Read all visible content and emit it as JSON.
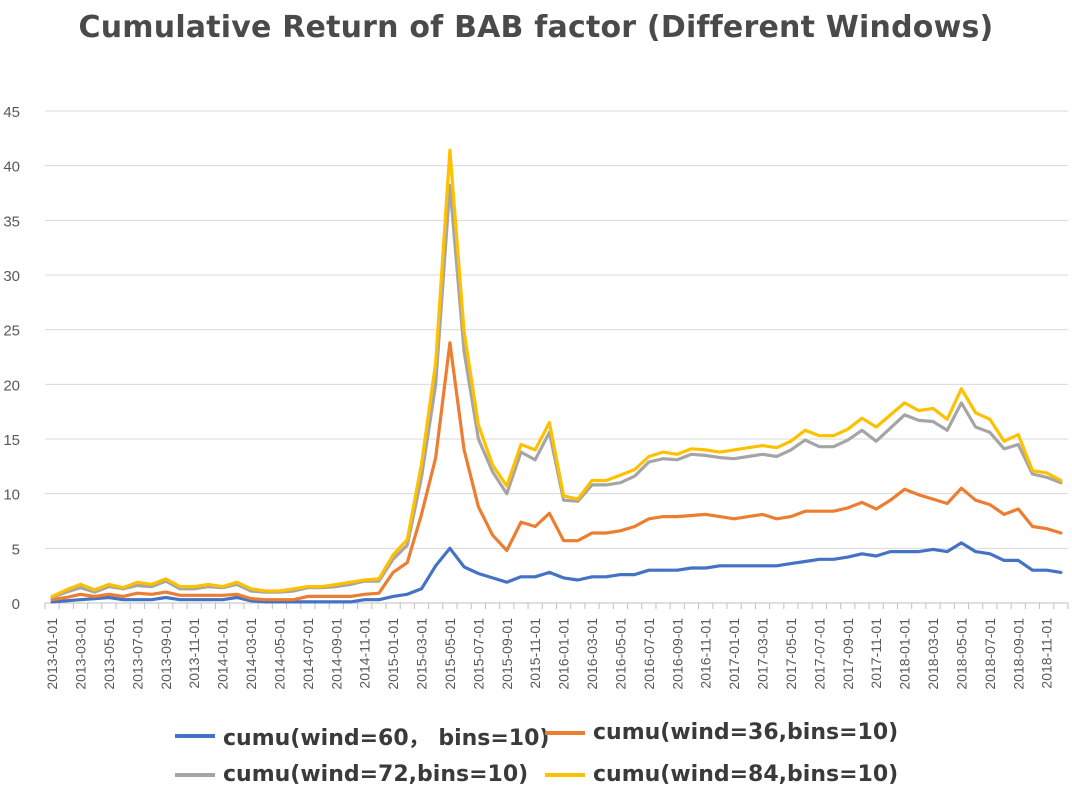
{
  "chart_data": {
    "type": "line",
    "title": "Cumulative Return of BAB factor (Different Windows)",
    "xlabel": "",
    "ylabel": "",
    "ylim": [
      0,
      45
    ],
    "yticks": [
      0,
      5,
      10,
      15,
      20,
      25,
      30,
      35,
      40,
      45
    ],
    "grid": true,
    "legend_position": "bottom",
    "x": [
      "2013-01-01",
      "2013-02-01",
      "2013-03-01",
      "2013-04-01",
      "2013-05-01",
      "2013-06-01",
      "2013-07-01",
      "2013-08-01",
      "2013-09-01",
      "2013-10-01",
      "2013-11-01",
      "2013-12-01",
      "2014-01-01",
      "2014-02-01",
      "2014-03-01",
      "2014-04-01",
      "2014-05-01",
      "2014-06-01",
      "2014-07-01",
      "2014-08-01",
      "2014-09-01",
      "2014-10-01",
      "2014-11-01",
      "2014-12-01",
      "2015-01-01",
      "2015-02-01",
      "2015-03-01",
      "2015-04-01",
      "2015-05-01",
      "2015-06-01",
      "2015-07-01",
      "2015-08-01",
      "2015-09-01",
      "2015-10-01",
      "2015-11-01",
      "2015-12-01",
      "2016-01-01",
      "2016-02-01",
      "2016-03-01",
      "2016-04-01",
      "2016-05-01",
      "2016-06-01",
      "2016-07-01",
      "2016-08-01",
      "2016-09-01",
      "2016-10-01",
      "2016-11-01",
      "2016-12-01",
      "2017-01-01",
      "2017-02-01",
      "2017-03-01",
      "2017-04-01",
      "2017-05-01",
      "2017-06-01",
      "2017-07-01",
      "2017-08-01",
      "2017-09-01",
      "2017-10-01",
      "2017-11-01",
      "2017-12-01",
      "2018-01-01",
      "2018-02-01",
      "2018-03-01",
      "2018-04-01",
      "2018-05-01",
      "2018-06-01",
      "2018-07-01",
      "2018-08-01",
      "2018-09-01",
      "2018-10-01",
      "2018-11-01",
      "2018-12-01"
    ],
    "xtick_labels": [
      "2013-01-01",
      "2013-03-01",
      "2013-05-01",
      "2013-07-01",
      "2013-09-01",
      "2013-11-01",
      "2014-01-01",
      "2014-03-01",
      "2014-05-01",
      "2014-07-01",
      "2014-09-01",
      "2014-11-01",
      "2015-01-01",
      "2015-03-01",
      "2015-05-01",
      "2015-07-01",
      "2015-09-01",
      "2015-11-01",
      "2016-01-01",
      "2016-03-01",
      "2016-05-01",
      "2016-07-01",
      "2016-09-01",
      "2016-11-01",
      "2017-01-01",
      "2017-03-01",
      "2017-05-01",
      "2017-07-01",
      "2017-09-01",
      "2017-11-01",
      "2018-01-01",
      "2018-03-01",
      "2018-05-01",
      "2018-07-01",
      "2018-09-01",
      "2018-11-01"
    ],
    "series": [
      {
        "name": "cumu(wind=60， bins=10)",
        "color": "#4472C4",
        "values": [
          0.1,
          0.2,
          0.3,
          0.4,
          0.5,
          0.3,
          0.3,
          0.3,
          0.5,
          0.3,
          0.3,
          0.3,
          0.3,
          0.5,
          0.2,
          0.1,
          0.1,
          0.1,
          0.1,
          0.1,
          0.1,
          0.1,
          0.3,
          0.3,
          0.6,
          0.8,
          1.3,
          3.4,
          5.0,
          3.3,
          2.7,
          2.3,
          1.9,
          2.4,
          2.4,
          2.8,
          2.3,
          2.1,
          2.4,
          2.4,
          2.6,
          2.6,
          3.0,
          3.0,
          3.0,
          3.2,
          3.2,
          3.4,
          3.4,
          3.4,
          3.4,
          3.4,
          3.6,
          3.8,
          4.0,
          4.0,
          4.2,
          4.5,
          4.3,
          4.7,
          4.7,
          4.7,
          4.9,
          4.7,
          5.5,
          4.7,
          4.5,
          3.9,
          3.9,
          3.0,
          3.0,
          2.8
        ]
      },
      {
        "name": "cumu(wind=36,bins=10)",
        "color": "#ED7D31",
        "values": [
          0.3,
          0.5,
          0.8,
          0.6,
          0.8,
          0.6,
          0.9,
          0.8,
          1.0,
          0.7,
          0.7,
          0.7,
          0.7,
          0.8,
          0.4,
          0.3,
          0.3,
          0.3,
          0.6,
          0.6,
          0.6,
          0.6,
          0.8,
          0.9,
          2.8,
          3.7,
          8.1,
          13.3,
          23.8,
          14.0,
          8.8,
          6.2,
          4.8,
          7.4,
          7.0,
          8.2,
          5.7,
          5.7,
          6.4,
          6.4,
          6.6,
          7.0,
          7.7,
          7.9,
          7.9,
          8.0,
          8.1,
          7.9,
          7.7,
          7.9,
          8.1,
          7.7,
          7.9,
          8.4,
          8.4,
          8.4,
          8.7,
          9.2,
          8.6,
          9.4,
          10.4,
          9.9,
          9.5,
          9.1,
          10.5,
          9.4,
          9.0,
          8.1,
          8.6,
          7.0,
          6.8,
          6.4
        ]
      },
      {
        "name": "cumu(wind=72,bins=10)",
        "color": "#A5A5A5",
        "values": [
          0.5,
          1.0,
          1.4,
          1.0,
          1.5,
          1.3,
          1.6,
          1.5,
          2.0,
          1.3,
          1.3,
          1.5,
          1.4,
          1.7,
          1.1,
          1.0,
          1.0,
          1.1,
          1.4,
          1.4,
          1.5,
          1.7,
          2.0,
          2.0,
          4.0,
          5.3,
          11.5,
          20.0,
          38.2,
          23.0,
          15.0,
          12.0,
          10.0,
          13.8,
          13.1,
          15.6,
          9.4,
          9.3,
          10.8,
          10.8,
          11.0,
          11.6,
          12.9,
          13.2,
          13.1,
          13.6,
          13.5,
          13.3,
          13.2,
          13.4,
          13.6,
          13.4,
          14.0,
          14.9,
          14.3,
          14.3,
          14.9,
          15.8,
          14.8,
          16.0,
          17.2,
          16.7,
          16.6,
          15.8,
          18.3,
          16.1,
          15.6,
          14.1,
          14.5,
          11.8,
          11.5,
          11.0
        ]
      },
      {
        "name": "cumu(wind=84,bins=10)",
        "color": "#FFC000",
        "values": [
          0.6,
          1.2,
          1.7,
          1.2,
          1.7,
          1.4,
          1.9,
          1.7,
          2.2,
          1.5,
          1.5,
          1.7,
          1.5,
          1.9,
          1.3,
          1.1,
          1.1,
          1.3,
          1.5,
          1.5,
          1.7,
          1.9,
          2.1,
          2.2,
          4.4,
          5.8,
          12.7,
          22.0,
          41.4,
          24.8,
          16.3,
          12.6,
          10.7,
          14.5,
          14.0,
          16.5,
          9.8,
          9.5,
          11.2,
          11.2,
          11.7,
          12.2,
          13.4,
          13.8,
          13.6,
          14.1,
          14.0,
          13.8,
          14.0,
          14.2,
          14.4,
          14.2,
          14.8,
          15.8,
          15.3,
          15.3,
          15.9,
          16.9,
          16.1,
          17.2,
          18.3,
          17.6,
          17.8,
          16.8,
          19.6,
          17.4,
          16.8,
          14.8,
          15.4,
          12.1,
          11.9,
          11.2
        ]
      }
    ]
  }
}
